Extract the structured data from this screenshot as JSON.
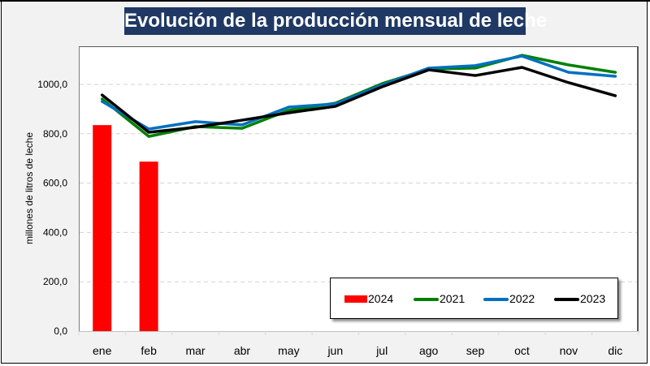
{
  "chart_data": {
    "type": "bar+line",
    "title": "Evolución de la producción mensual de leche",
    "xlabel": "",
    "ylabel": "millones de litros de leche",
    "ylim": [
      0,
      1200
    ],
    "yticks": [
      0,
      200,
      400,
      600,
      800,
      1000
    ],
    "ytick_labels": [
      "0,0",
      "200,0",
      "400,0",
      "600,0",
      "800,0",
      "1000,0"
    ],
    "grid": "horizontal dashed",
    "legend_position": "bottom-right",
    "categories": [
      "ene",
      "feb",
      "mar",
      "abr",
      "may",
      "jun",
      "jul",
      "ago",
      "sep",
      "oct",
      "nov",
      "dic"
    ],
    "series": [
      {
        "name": "2024",
        "kind": "bar",
        "color": "#ff0000",
        "values": [
          835,
          687,
          null,
          null,
          null,
          null,
          null,
          null,
          null,
          null,
          null,
          null
        ]
      },
      {
        "name": "2021",
        "kind": "line",
        "color": "#008000",
        "values": [
          941,
          789,
          829,
          822,
          895,
          924,
          1003,
          1062,
          1066,
          1118,
          1079,
          1049
        ]
      },
      {
        "name": "2022",
        "kind": "line",
        "color": "#0070c0",
        "values": [
          931,
          819,
          849,
          836,
          908,
          921,
          997,
          1066,
          1076,
          1115,
          1049,
          1033
        ]
      },
      {
        "name": "2023",
        "kind": "line",
        "color": "#000000",
        "values": [
          957,
          806,
          826,
          855,
          885,
          911,
          990,
          1059,
          1036,
          1069,
          1007,
          954
        ]
      }
    ]
  }
}
